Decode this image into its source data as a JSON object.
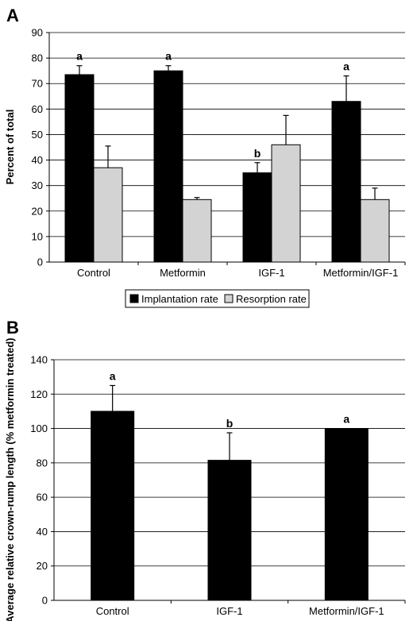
{
  "chart_data": [
    {
      "panel": "A",
      "type": "bar",
      "categories": [
        "Control",
        "Metformin",
        "IGF-1",
        "Metformin/IGF-1"
      ],
      "ylabel": "Percent of total",
      "xlabel": "",
      "ylim": [
        0,
        90
      ],
      "yticks": [
        0,
        10,
        20,
        30,
        40,
        50,
        60,
        70,
        80,
        90
      ],
      "grid": true,
      "legend_position": "bottom",
      "series": [
        {
          "name": "Implantation rate",
          "color": "#000000",
          "values": [
            73.5,
            75,
            35,
            63
          ],
          "errors": [
            3.5,
            2,
            4,
            10
          ],
          "significance": [
            "a",
            "a",
            "b",
            "a"
          ]
        },
        {
          "name": "Resorption rate",
          "color": "#d3d3d3",
          "values": [
            37,
            24.5,
            46,
            24.5
          ],
          "errors": [
            8.5,
            0.8,
            11.5,
            4.5
          ]
        }
      ]
    },
    {
      "panel": "B",
      "type": "bar",
      "categories": [
        "Control",
        "IGF-1",
        "Metformin/IGF-1"
      ],
      "ylabel": "Average relative crown-rump length (% metformin treated)",
      "xlabel": "",
      "ylim": [
        0,
        140
      ],
      "yticks": [
        0,
        20,
        40,
        60,
        80,
        100,
        120,
        140
      ],
      "grid": true,
      "series": [
        {
          "color": "#000000",
          "values": [
            110,
            81.5,
            100
          ],
          "errors": [
            15,
            16,
            0
          ],
          "significance": [
            "a",
            "b",
            "a"
          ]
        }
      ]
    }
  ]
}
